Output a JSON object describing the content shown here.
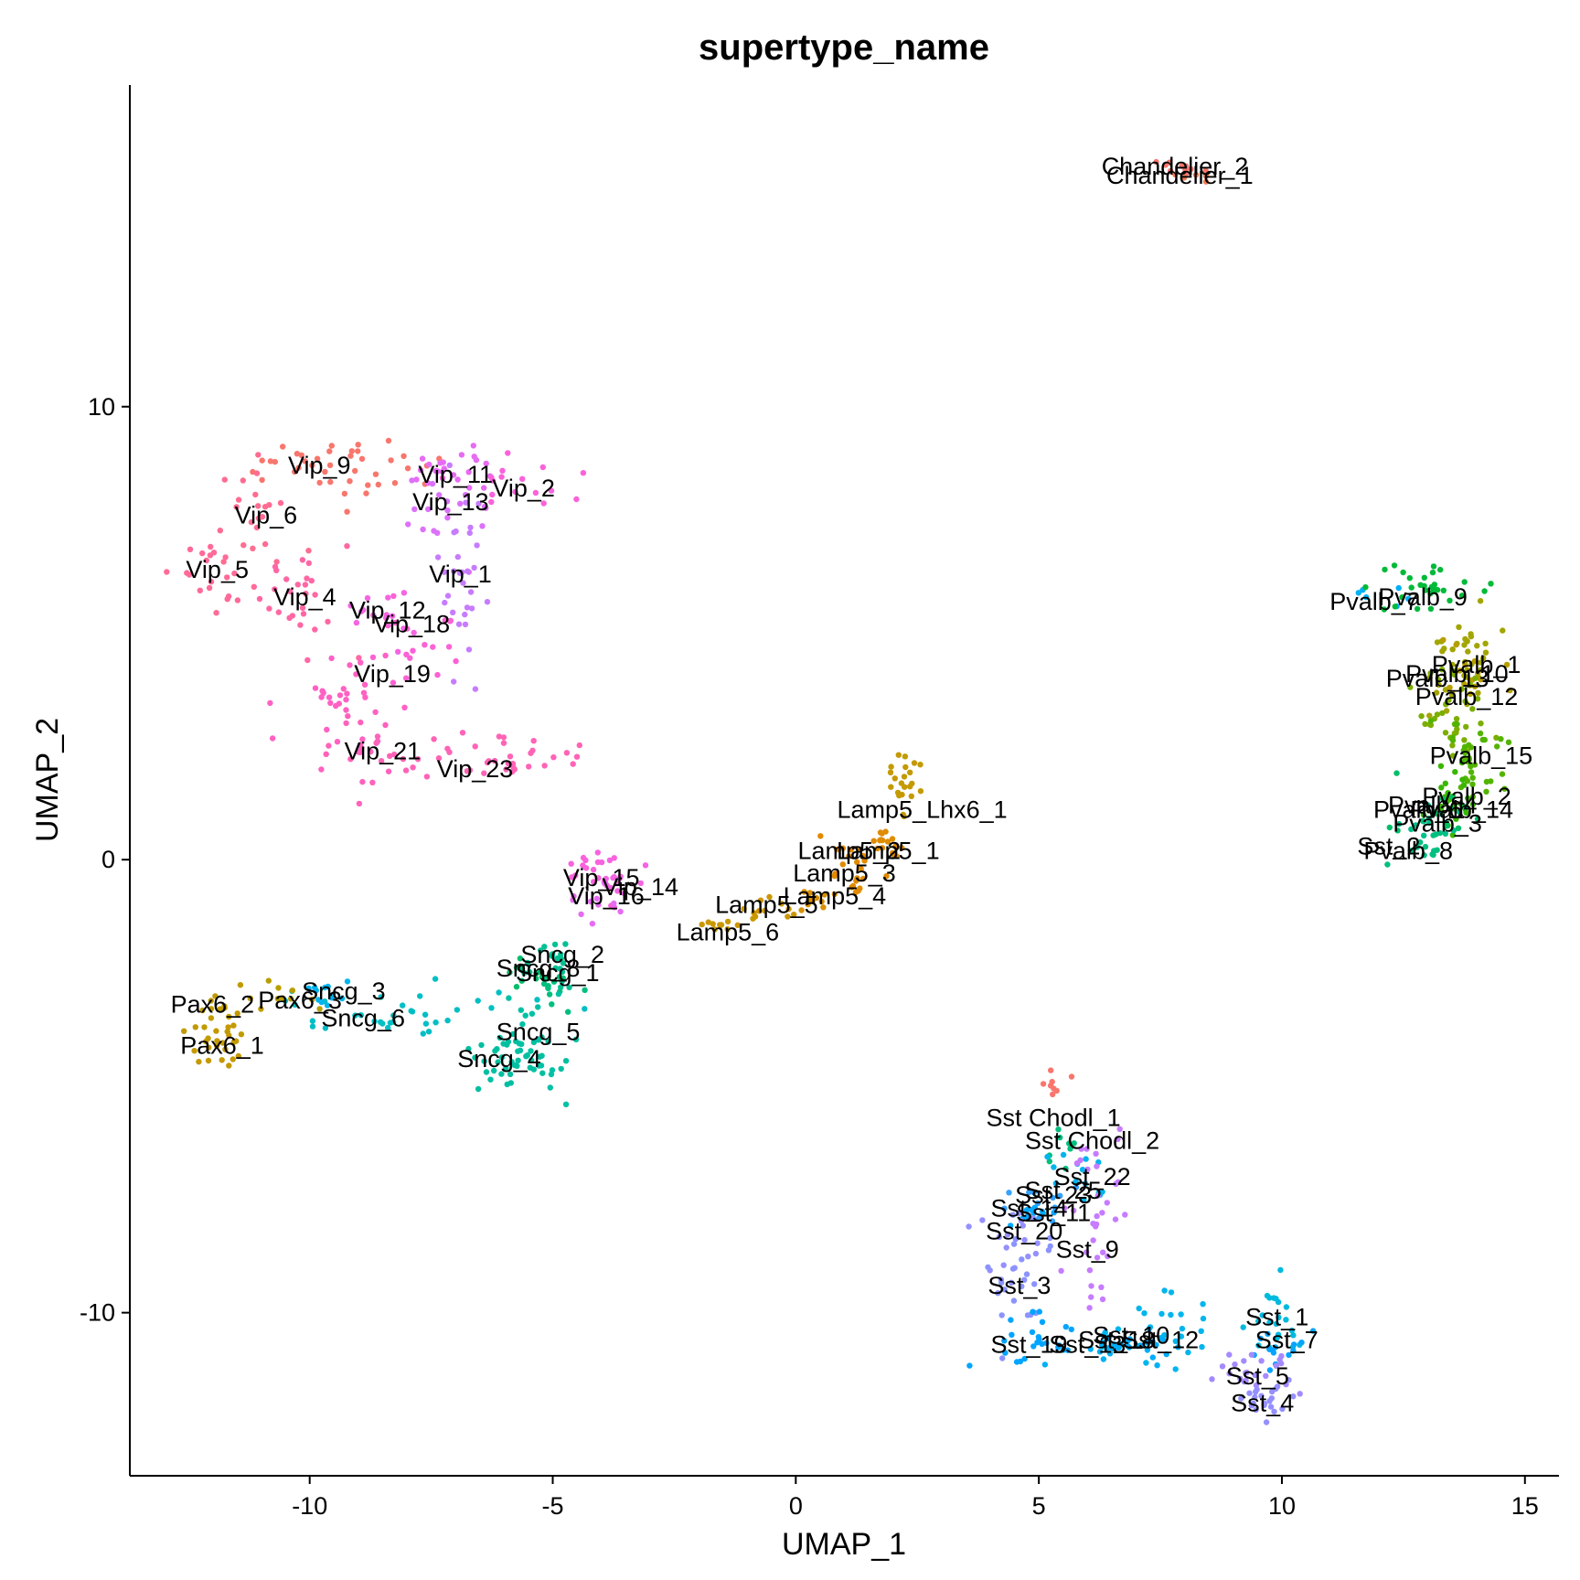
{
  "chart_data": {
    "type": "scatter",
    "title": "supertype_name",
    "xlabel": "UMAP_1",
    "ylabel": "UMAP_2",
    "xlim": [
      -13.7,
      15.7
    ],
    "ylim": [
      -13.6,
      17.1
    ],
    "x_ticks": [
      -10,
      -5,
      0,
      5,
      10,
      15
    ],
    "y_ticks": [
      -10,
      0,
      10
    ],
    "grid": false,
    "legend": "none",
    "series": [
      {
        "name": "Chandelier_2",
        "color": "#F8766D",
        "center": [
          7.9,
          15.2
        ],
        "spread": [
          0.25,
          0.12
        ],
        "n": 10
      },
      {
        "name": "Chandelier_1",
        "color": "#F27D52",
        "center": [
          8.1,
          15.0
        ],
        "spread": [
          0.2,
          0.1
        ],
        "n": 6
      },
      {
        "name": "Vip_9",
        "color": "#F8766D",
        "center": [
          -9.8,
          8.7
        ],
        "spread": [
          1.1,
          0.35
        ],
        "n": 40
      },
      {
        "name": "Vip_11",
        "color": "#E76BF3",
        "center": [
          -7.1,
          8.6
        ],
        "spread": [
          0.5,
          0.3
        ],
        "n": 22
      },
      {
        "name": "Vip_13",
        "color": "#DC71FA",
        "center": [
          -7.1,
          7.8
        ],
        "spread": [
          0.4,
          0.4
        ],
        "n": 18
      },
      {
        "name": "Vip_2",
        "color": "#FA62DB",
        "center": [
          -5.8,
          8.2
        ],
        "spread": [
          0.55,
          0.25
        ],
        "n": 16
      },
      {
        "name": "Vip_6",
        "color": "#FF6C92",
        "center": [
          -11.2,
          7.5
        ],
        "spread": [
          0.4,
          0.5
        ],
        "n": 22
      },
      {
        "name": "Vip_5",
        "color": "#FF6A98",
        "center": [
          -12.1,
          6.3
        ],
        "spread": [
          0.5,
          0.4
        ],
        "n": 20
      },
      {
        "name": "Vip_1",
        "color": "#C77CFF",
        "center": [
          -6.8,
          6.4
        ],
        "spread": [
          0.3,
          0.9
        ],
        "n": 30
      },
      {
        "name": "Vip_4",
        "color": "#FF67A4",
        "center": [
          -10.2,
          5.8
        ],
        "spread": [
          0.5,
          0.6
        ],
        "n": 26
      },
      {
        "name": "Vip_12",
        "color": "#F564E3",
        "center": [
          -8.4,
          5.3
        ],
        "spread": [
          0.5,
          0.4
        ],
        "n": 14
      },
      {
        "name": "Vip_18",
        "color": "#FC61D5",
        "center": [
          -7.6,
          4.8
        ],
        "spread": [
          0.5,
          0.4
        ],
        "n": 18
      },
      {
        "name": "Vip_19",
        "color": "#FF61C3",
        "center": [
          -9.3,
          3.8
        ],
        "spread": [
          0.5,
          0.8
        ],
        "n": 30
      },
      {
        "name": "Vip_21",
        "color": "#FF62BC",
        "center": [
          -9.0,
          2.5
        ],
        "spread": [
          0.3,
          0.5
        ],
        "n": 16
      },
      {
        "name": "Vip_23",
        "color": "#FF63B6",
        "center": [
          -6.5,
          2.2
        ],
        "spread": [
          1.2,
          0.22
        ],
        "n": 42
      },
      {
        "name": "Pvalb_7",
        "color": "#00B0F6",
        "center": [
          12.1,
          5.8
        ],
        "spread": [
          0.3,
          0.15
        ],
        "n": 6
      },
      {
        "name": "Pvalb_9",
        "color": "#00BA38",
        "center": [
          13.0,
          6.0
        ],
        "spread": [
          0.6,
          0.25
        ],
        "n": 30
      },
      {
        "name": "Pvalb_1",
        "color": "#A3A500",
        "center": [
          13.8,
          4.2
        ],
        "spread": [
          0.4,
          0.6
        ],
        "n": 40
      },
      {
        "name": "Pvalb_13",
        "color": "#B79F00",
        "center": [
          13.8,
          3.9
        ],
        "spread": [
          0.3,
          0.3
        ],
        "n": 14
      },
      {
        "name": "Pvalb_12",
        "color": "#7CAE00",
        "center": [
          13.7,
          3.2
        ],
        "spread": [
          0.35,
          0.5
        ],
        "n": 34
      },
      {
        "name": "Pvalb_15",
        "color": "#53B400",
        "center": [
          13.8,
          2.2
        ],
        "spread": [
          0.35,
          0.5
        ],
        "n": 36
      },
      {
        "name": "Pvalb_2",
        "color": "#39B600",
        "center": [
          13.6,
          1.3
        ],
        "spread": [
          0.4,
          0.35
        ],
        "n": 24
      },
      {
        "name": "Pvalb_14",
        "color": "#00BE67",
        "center": [
          13.3,
          1.1
        ],
        "spread": [
          0.4,
          0.25
        ],
        "n": 14
      },
      {
        "name": "Pvalb_3",
        "color": "#00C08B",
        "center": [
          13.0,
          0.7
        ],
        "spread": [
          0.35,
          0.25
        ],
        "n": 14
      },
      {
        "name": "Pvalb_8",
        "color": "#00BF7D",
        "center": [
          12.8,
          0.3
        ],
        "spread": [
          0.35,
          0.2
        ],
        "n": 12
      },
      {
        "name": "Lamp5_Lhx6_1",
        "color": "#C49A00",
        "center": [
          2.3,
          1.6
        ],
        "spread": [
          0.18,
          0.4
        ],
        "n": 22
      },
      {
        "name": "Lamp5_1",
        "color": "#DE8C00",
        "center": [
          1.8,
          0.4
        ],
        "spread": [
          0.35,
          0.25
        ],
        "n": 16
      },
      {
        "name": "Lamp5_2",
        "color": "#E38900",
        "center": [
          1.3,
          0.1
        ],
        "spread": [
          0.3,
          0.2
        ],
        "n": 10
      },
      {
        "name": "Lamp5_3",
        "color": "#E18A00",
        "center": [
          1.0,
          -0.4
        ],
        "spread": [
          0.35,
          0.2
        ],
        "n": 12
      },
      {
        "name": "Lamp5_4",
        "color": "#D89000",
        "center": [
          0.3,
          -0.8
        ],
        "spread": [
          0.4,
          0.15
        ],
        "n": 12
      },
      {
        "name": "Lamp5_5",
        "color": "#CD9600",
        "center": [
          -0.7,
          -1.1
        ],
        "spread": [
          0.4,
          0.15
        ],
        "n": 12
      },
      {
        "name": "Lamp5_6",
        "color": "#C99800",
        "center": [
          -1.4,
          -1.5
        ],
        "spread": [
          0.35,
          0.15
        ],
        "n": 10
      },
      {
        "name": "Vip_15",
        "color": "#F962DD",
        "center": [
          -4.0,
          -0.2
        ],
        "spread": [
          0.35,
          0.4
        ],
        "n": 20
      },
      {
        "name": "Vip_14",
        "color": "#F564E3",
        "center": [
          -3.5,
          -0.6
        ],
        "spread": [
          0.35,
          0.25
        ],
        "n": 12
      },
      {
        "name": "Vip_16",
        "color": "#E76BF3",
        "center": [
          -4.1,
          -0.9
        ],
        "spread": [
          0.3,
          0.25
        ],
        "n": 10
      },
      {
        "name": "Sncg_2",
        "color": "#00C094",
        "center": [
          -4.9,
          -2.2
        ],
        "spread": [
          0.4,
          0.3
        ],
        "n": 18
      },
      {
        "name": "Sncg_8",
        "color": "#00BE6C",
        "center": [
          -5.4,
          -2.5
        ],
        "spread": [
          0.3,
          0.25
        ],
        "n": 10
      },
      {
        "name": "Sncg_1",
        "color": "#00BF7D",
        "center": [
          -5.1,
          -2.8
        ],
        "spread": [
          0.3,
          0.3
        ],
        "n": 14
      },
      {
        "name": "Sncg_5",
        "color": "#00C1A3",
        "center": [
          -5.3,
          -3.9
        ],
        "spread": [
          0.5,
          0.6
        ],
        "n": 30
      },
      {
        "name": "Sncg_4",
        "color": "#00BFA0",
        "center": [
          -5.9,
          -4.4
        ],
        "spread": [
          0.55,
          0.3
        ],
        "n": 30
      },
      {
        "name": "Sncg_6",
        "color": "#00BFC4",
        "center": [
          -8.0,
          -3.4
        ],
        "spread": [
          1.5,
          0.3
        ],
        "n": 34
      },
      {
        "name": "Sncg_3",
        "color": "#00B4EF",
        "center": [
          -9.6,
          -3.0
        ],
        "spread": [
          0.4,
          0.2
        ],
        "n": 12
      },
      {
        "name": "Pax6_3",
        "color": "#B79F00",
        "center": [
          -10.4,
          -3.1
        ],
        "spread": [
          0.3,
          0.2
        ],
        "n": 8
      },
      {
        "name": "Pax6_2",
        "color": "#C09B00",
        "center": [
          -11.9,
          -3.4
        ],
        "spread": [
          0.3,
          0.35
        ],
        "n": 18
      },
      {
        "name": "Pax6_1",
        "color": "#C59900",
        "center": [
          -11.8,
          -4.1
        ],
        "spread": [
          0.3,
          0.35
        ],
        "n": 20
      },
      {
        "name": "Sst Chodl_1",
        "color": "#F8766D",
        "center": [
          5.3,
          -4.9
        ],
        "spread": [
          0.25,
          0.15
        ],
        "n": 8
      },
      {
        "name": "Sst Chodl_2",
        "color": "#00BF7D",
        "center": [
          5.6,
          -6.3
        ],
        "spread": [
          0.2,
          0.3
        ],
        "n": 8
      },
      {
        "name": "Sst_22",
        "color": "#00B4EF",
        "center": [
          5.6,
          -7.0
        ],
        "spread": [
          0.4,
          0.3
        ],
        "n": 14
      },
      {
        "name": "Sst_25",
        "color": "#35A2FF",
        "center": [
          5.2,
          -7.5
        ],
        "spread": [
          0.4,
          0.25
        ],
        "n": 12
      },
      {
        "name": "Sst_11",
        "color": "#00A9FF",
        "center": [
          4.8,
          -7.8
        ],
        "spread": [
          0.3,
          0.2
        ],
        "n": 10
      },
      {
        "name": "Sst_9",
        "color": "#C77CFF",
        "center": [
          6.1,
          -8.0
        ],
        "spread": [
          0.3,
          1.1
        ],
        "n": 34
      },
      {
        "name": "Sst_20",
        "color": "#9590FF",
        "center": [
          4.6,
          -8.4
        ],
        "spread": [
          0.3,
          0.35
        ],
        "n": 16
      },
      {
        "name": "Sst_3",
        "color": "#8B93FF",
        "center": [
          4.6,
          -9.4
        ],
        "spread": [
          0.35,
          0.6
        ],
        "n": 24
      },
      {
        "name": "Sst_19",
        "color": "#00A5FF",
        "center": [
          4.9,
          -10.7
        ],
        "spread": [
          0.4,
          0.3
        ],
        "n": 24
      },
      {
        "name": "Sst_15",
        "color": "#00B0F6",
        "center": [
          6.3,
          -10.8
        ],
        "spread": [
          0.6,
          0.15
        ],
        "n": 20
      },
      {
        "name": "Sst_10",
        "color": "#00ACFC",
        "center": [
          7.1,
          -10.6
        ],
        "spread": [
          0.4,
          0.2
        ],
        "n": 16
      },
      {
        "name": "Sst_12",
        "color": "#00B5EE",
        "center": [
          7.7,
          -10.3
        ],
        "spread": [
          0.5,
          0.35
        ],
        "n": 22
      },
      {
        "name": "Sst_1",
        "color": "#00BADE",
        "center": [
          9.9,
          -10.1
        ],
        "spread": [
          0.25,
          0.4
        ],
        "n": 22
      },
      {
        "name": "Sst_7",
        "color": "#06A4FF",
        "center": [
          10.0,
          -10.8
        ],
        "spread": [
          0.25,
          0.3
        ],
        "n": 14
      },
      {
        "name": "Sst_5",
        "color": "#A58AFF",
        "center": [
          9.5,
          -11.4
        ],
        "spread": [
          0.45,
          0.25
        ],
        "n": 22
      },
      {
        "name": "Sst_4",
        "color": "#9590FF",
        "center": [
          9.7,
          -11.9
        ],
        "spread": [
          0.35,
          0.25
        ],
        "n": 22
      }
    ],
    "labels": [
      {
        "text": "Chandelier_2",
        "x": 7.8,
        "y": 15.3
      },
      {
        "text": "Chandelier_1",
        "x": 7.9,
        "y": 15.1
      },
      {
        "text": "Vip_9",
        "x": -9.8,
        "y": 8.7
      },
      {
        "text": "Vip_11",
        "x": -7.0,
        "y": 8.5
      },
      {
        "text": "Vip_2",
        "x": -5.6,
        "y": 8.2
      },
      {
        "text": "Vip_13",
        "x": -7.1,
        "y": 7.9
      },
      {
        "text": "Vip_6",
        "x": -10.9,
        "y": 7.6
      },
      {
        "text": "Vip_1",
        "x": -6.9,
        "y": 6.3
      },
      {
        "text": "Vip_5",
        "x": -11.9,
        "y": 6.4
      },
      {
        "text": "Vip_4",
        "x": -10.1,
        "y": 5.8
      },
      {
        "text": "Vip_12",
        "x": -8.4,
        "y": 5.5
      },
      {
        "text": "Vip_18",
        "x": -7.9,
        "y": 5.2
      },
      {
        "text": "Vip_19",
        "x": -8.3,
        "y": 4.1
      },
      {
        "text": "Vip_21",
        "x": -8.5,
        "y": 2.4
      },
      {
        "text": "Vip_23",
        "x": -6.6,
        "y": 2.0
      },
      {
        "text": "Pvalb_7",
        "x": 11.9,
        "y": 5.7
      },
      {
        "text": "Pvalb_9",
        "x": 12.9,
        "y": 5.8
      },
      {
        "text": "Pvalb_1",
        "x": 14.0,
        "y": 4.3
      },
      {
        "text": "Pvalb_13",
        "x": 13.2,
        "y": 4.0
      },
      {
        "text": "Pvalb_10",
        "x": 13.6,
        "y": 4.1
      },
      {
        "text": "Pvalb_12",
        "x": 13.8,
        "y": 3.6
      },
      {
        "text": "Pvalb_15",
        "x": 14.1,
        "y": 2.3
      },
      {
        "text": "Pvalb_2",
        "x": 13.8,
        "y": 1.4
      },
      {
        "text": "Pvalb_6",
        "x": 12.8,
        "y": 1.1
      },
      {
        "text": "Pvalb_4",
        "x": 13.1,
        "y": 1.2
      },
      {
        "text": "Pvalb_14",
        "x": 13.7,
        "y": 1.1
      },
      {
        "text": "Pvalb_3",
        "x": 13.2,
        "y": 0.8
      },
      {
        "text": "Sst_2",
        "x": 12.2,
        "y": 0.3
      },
      {
        "text": "Pvalb_8",
        "x": 12.6,
        "y": 0.2
      },
      {
        "text": "Lamp5_Lhx6_1",
        "x": 2.6,
        "y": 1.1
      },
      {
        "text": "Lamp5_1",
        "x": 1.9,
        "y": 0.2
      },
      {
        "text": "Lamp5_2",
        "x": 1.1,
        "y": 0.2
      },
      {
        "text": "Lamp5_3",
        "x": 1.0,
        "y": -0.3
      },
      {
        "text": "Lamp5_4",
        "x": 0.8,
        "y": -0.8
      },
      {
        "text": "Lamp5_5",
        "x": -0.6,
        "y": -1.0
      },
      {
        "text": "Lamp5_6",
        "x": -1.4,
        "y": -1.6
      },
      {
        "text": "Vip_15",
        "x": -4.0,
        "y": -0.4
      },
      {
        "text": "Vip_14",
        "x": -3.2,
        "y": -0.6
      },
      {
        "text": "Vip_16",
        "x": -3.9,
        "y": -0.8
      },
      {
        "text": "Sncg_2",
        "x": -4.8,
        "y": -2.1
      },
      {
        "text": "Sncg_8",
        "x": -5.3,
        "y": -2.4
      },
      {
        "text": "Sncg_1",
        "x": -4.9,
        "y": -2.5
      },
      {
        "text": "Pax6_3",
        "x": -10.2,
        "y": -3.1
      },
      {
        "text": "Sncg_3",
        "x": -9.3,
        "y": -2.9
      },
      {
        "text": "Pax6_2",
        "x": -12.0,
        "y": -3.2
      },
      {
        "text": "Sncg_6",
        "x": -8.9,
        "y": -3.5
      },
      {
        "text": "Pax6_1",
        "x": -11.8,
        "y": -4.1
      },
      {
        "text": "Sncg_5",
        "x": -5.3,
        "y": -3.8
      },
      {
        "text": "Sncg_4",
        "x": -6.1,
        "y": -4.4
      },
      {
        "text": "Sst Chodl_1",
        "x": 5.3,
        "y": -5.7
      },
      {
        "text": "Sst Chodl_2",
        "x": 6.1,
        "y": -6.2
      },
      {
        "text": "Sst_22",
        "x": 6.1,
        "y": -7.0
      },
      {
        "text": "Sst_25",
        "x": 5.5,
        "y": -7.3
      },
      {
        "text": "Sst_23",
        "x": 5.3,
        "y": -7.4
      },
      {
        "text": "Sst_14",
        "x": 4.8,
        "y": -7.7
      },
      {
        "text": "Sst_11",
        "x": 5.3,
        "y": -7.8
      },
      {
        "text": "Sst_20",
        "x": 4.7,
        "y": -8.2
      },
      {
        "text": "Sst_9",
        "x": 6.0,
        "y": -8.6
      },
      {
        "text": "Sst_3",
        "x": 4.6,
        "y": -9.4
      },
      {
        "text": "Sst_1",
        "x": 9.9,
        "y": -10.1
      },
      {
        "text": "Sst_10",
        "x": 6.9,
        "y": -10.5
      },
      {
        "text": "Sst_12",
        "x": 7.5,
        "y": -10.6
      },
      {
        "text": "Sst_7",
        "x": 10.1,
        "y": -10.6
      },
      {
        "text": "Sst_19",
        "x": 4.8,
        "y": -10.7
      },
      {
        "text": "Sst_13",
        "x": 6.0,
        "y": -10.7
      },
      {
        "text": "Sst_18",
        "x": 6.6,
        "y": -10.6
      },
      {
        "text": "Sst_5",
        "x": 9.5,
        "y": -11.4
      },
      {
        "text": "Sst_4",
        "x": 9.6,
        "y": -12.0
      }
    ]
  }
}
